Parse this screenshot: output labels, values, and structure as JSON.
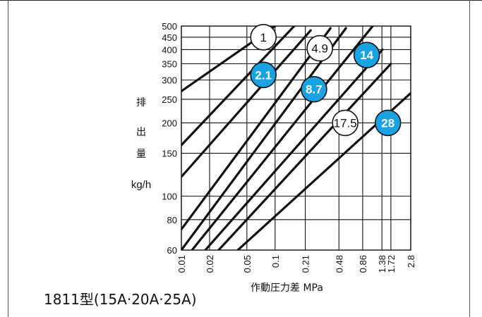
{
  "colors": {
    "grid": "#111111",
    "curve": "#111111",
    "badge_blue": "#1aa3e3",
    "badge_white": "#ffffff"
  },
  "chart_data": {
    "type": "line",
    "x_scale": "log",
    "y_scale": "log",
    "title": "1811型(15A·20A·25A)",
    "xlabel": "作動圧力差 MPa",
    "ylabel_chars": [
      "排",
      "出",
      "量"
    ],
    "ylabel_unit": "kg/h",
    "xlim": [
      0.01,
      2.8
    ],
    "ylim": [
      60,
      500
    ],
    "x_ticks": [
      {
        "v": 0.01,
        "label": "0.01"
      },
      {
        "v": 0.02,
        "label": "0.02"
      },
      {
        "v": 0.05,
        "label": "0.05"
      },
      {
        "v": 0.1,
        "label": "0.1"
      },
      {
        "v": 0.21,
        "label": "0.21"
      },
      {
        "v": 0.48,
        "label": "0.48"
      },
      {
        "v": 0.86,
        "label": "0.86"
      },
      {
        "v": 1.38,
        "label": "1.38"
      },
      {
        "v": 1.72,
        "label": "1.72"
      },
      {
        "v": 2.8,
        "label": "2.8"
      }
    ],
    "y_ticks": [
      {
        "v": 60,
        "label": "60"
      },
      {
        "v": 80,
        "label": "80"
      },
      {
        "v": 100,
        "label": "100"
      },
      {
        "v": 150,
        "label": "150"
      },
      {
        "v": 200,
        "label": "200"
      },
      {
        "v": 250,
        "label": "250"
      },
      {
        "v": 300,
        "label": "300"
      },
      {
        "v": 350,
        "label": "350"
      },
      {
        "v": 400,
        "label": "400"
      },
      {
        "v": 450,
        "label": "450"
      },
      {
        "v": 500,
        "label": "500"
      }
    ],
    "series": [
      {
        "badge": "1",
        "badge_style": "white",
        "badge_at": [
          0.075,
          450
        ],
        "points": [
          [
            0.01,
            270
          ],
          [
            0.1,
            500
          ]
        ]
      },
      {
        "badge": "2.1",
        "badge_style": "blue",
        "badge_at": [
          0.075,
          315
        ],
        "points": [
          [
            0.01,
            162
          ],
          [
            0.16,
            500
          ]
        ]
      },
      {
        "badge": "4.9",
        "badge_style": "white",
        "badge_at": [
          0.3,
          405
        ],
        "points": [
          [
            0.01,
            120
          ],
          [
            0.24,
            480
          ]
        ]
      },
      {
        "badge": "8.7",
        "badge_style": "blue",
        "badge_at": [
          0.26,
          275
        ],
        "points": [
          [
            0.01,
            73
          ],
          [
            0.39,
            490
          ]
        ]
      },
      {
        "badge": "14",
        "badge_style": "blue",
        "badge_at": [
          0.95,
          380
        ],
        "points": [
          [
            0.01,
            60
          ],
          [
            0.57,
            490
          ]
        ]
      },
      {
        "badge": "17.5",
        "badge_style": "white",
        "badge_at": [
          0.56,
          200
        ],
        "points": [
          [
            0.013,
            60
          ],
          [
            1.1,
            500
          ]
        ]
      },
      {
        "badge": "28",
        "badge_style": "blue",
        "badge_at": [
          1.6,
          200
        ],
        "points": [
          [
            0.018,
            60
          ],
          [
            1.4,
            400
          ]
        ]
      },
      {
        "badge": "",
        "badge_style": "none",
        "badge_at": null,
        "points": [
          [
            0.025,
            60
          ],
          [
            1.72,
            350
          ]
        ]
      },
      {
        "badge": "",
        "badge_style": "none",
        "badge_at": null,
        "points": [
          [
            0.04,
            60
          ],
          [
            2.8,
            265
          ]
        ]
      }
    ]
  }
}
